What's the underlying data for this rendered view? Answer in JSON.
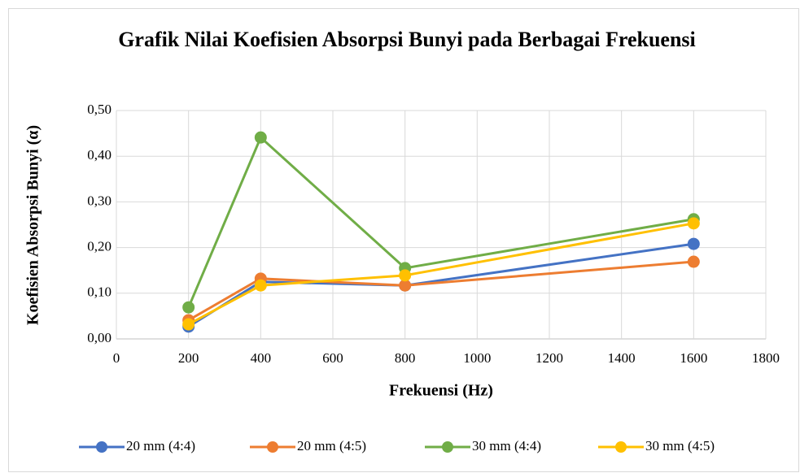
{
  "chart_data": {
    "type": "line",
    "title": "Grafik Nilai Koefisien Absorpsi Bunyi pada Berbagai Frekuensi",
    "xlabel": "Frekuensi (Hz)",
    "ylabel": "Koefisien Absorpsi Bunyi (α)",
    "x": [
      200,
      400,
      800,
      1600
    ],
    "series": [
      {
        "name": "20 mm (4:4)",
        "color": "#4472c4",
        "values": [
          0.027,
          0.125,
          0.117,
          0.208
        ]
      },
      {
        "name": "20 mm (4:5)",
        "color": "#ed7d31",
        "values": [
          0.041,
          0.132,
          0.117,
          0.169
        ]
      },
      {
        "name": "30 mm (4:4)",
        "color": "#70ad47",
        "values": [
          0.069,
          0.441,
          0.155,
          0.262
        ]
      },
      {
        "name": "30 mm (4:5)",
        "color": "#ffc000",
        "values": [
          0.032,
          0.117,
          0.139,
          0.253
        ]
      }
    ],
    "xlim": [
      0,
      1800
    ],
    "xticks": [
      0,
      200,
      400,
      600,
      800,
      1000,
      1200,
      1400,
      1600,
      1800
    ],
    "ylim": [
      0,
      0.5
    ],
    "yticks": [
      {
        "value": 0,
        "label": "0,00"
      },
      {
        "value": 0.1,
        "label": "0,10"
      },
      {
        "value": 0.2,
        "label": "0,20"
      },
      {
        "value": 0.3,
        "label": "0,30"
      },
      {
        "value": 0.4,
        "label": "0,40"
      },
      {
        "value": 0.5,
        "label": "0,50"
      }
    ],
    "grid": true,
    "legend": "bottom"
  }
}
